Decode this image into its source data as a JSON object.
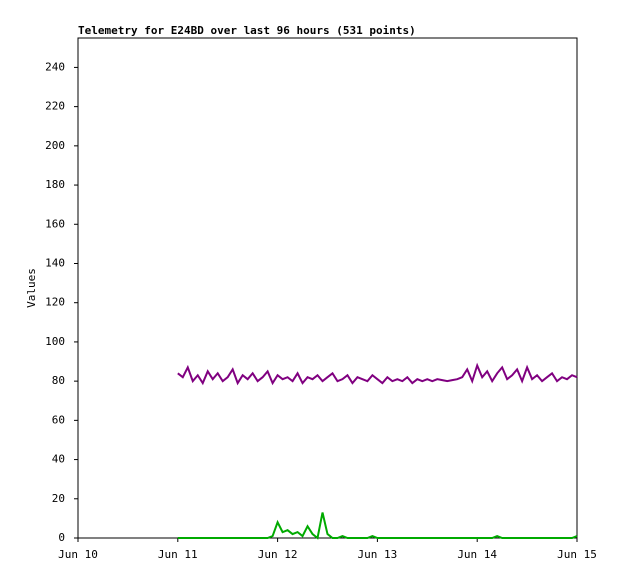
{
  "chart_data": {
    "type": "line",
    "title": "Telemetry for E24BD over last 96 hours (531 points)",
    "y_label": "Values",
    "xlim": [
      10,
      15
    ],
    "xticks": [
      {
        "value": 10,
        "label": "Jun 10"
      },
      {
        "value": 11,
        "label": "Jun 11"
      },
      {
        "value": 12,
        "label": "Jun 12"
      },
      {
        "value": 13,
        "label": "Jun 13"
      },
      {
        "value": 14,
        "label": "Jun 14"
      },
      {
        "value": 15,
        "label": "Jun 15"
      }
    ],
    "ylim": [
      0,
      255
    ],
    "yticks": [
      0,
      20,
      40,
      60,
      80,
      100,
      120,
      140,
      160,
      180,
      200,
      220,
      240
    ],
    "x": [
      11.0,
      11.05,
      11.1,
      11.15,
      11.2,
      11.25,
      11.3,
      11.35,
      11.4,
      11.45,
      11.5,
      11.55,
      11.6,
      11.65,
      11.7,
      11.75,
      11.8,
      11.85,
      11.9,
      11.95,
      12.0,
      12.05,
      12.1,
      12.15,
      12.2,
      12.25,
      12.3,
      12.35,
      12.4,
      12.45,
      12.5,
      12.55,
      12.6,
      12.65,
      12.7,
      12.75,
      12.8,
      12.85,
      12.9,
      12.95,
      13.0,
      13.05,
      13.1,
      13.15,
      13.2,
      13.25,
      13.3,
      13.35,
      13.4,
      13.45,
      13.5,
      13.55,
      13.6,
      13.65,
      13.7,
      13.75,
      13.8,
      13.85,
      13.9,
      13.95,
      14.0,
      14.05,
      14.1,
      14.15,
      14.2,
      14.25,
      14.3,
      14.35,
      14.4,
      14.45,
      14.5,
      14.55,
      14.6,
      14.65,
      14.7,
      14.75,
      14.8,
      14.85,
      14.9,
      14.95,
      15.0
    ],
    "series": [
      {
        "color": "#800080",
        "values": [
          84,
          82,
          87,
          80,
          83,
          79,
          85,
          81,
          84,
          80,
          82,
          86,
          79,
          83,
          81,
          84,
          80,
          82,
          85,
          79,
          83,
          81,
          82,
          80,
          84,
          79,
          82,
          81,
          83,
          80,
          82,
          84,
          80,
          81,
          83,
          79,
          82,
          81,
          80,
          83,
          81,
          79,
          82,
          80,
          81,
          80,
          82,
          79,
          81,
          80,
          81,
          80,
          81,
          80.5,
          80,
          80.5,
          81,
          82,
          86,
          80,
          88,
          82,
          85,
          80,
          84,
          87,
          81,
          83,
          86,
          80,
          87,
          81,
          83,
          80,
          82,
          84,
          80,
          82,
          81,
          83,
          82
        ]
      },
      {
        "color": "#00aa00",
        "values": [
          0,
          0,
          0,
          0,
          0,
          0,
          0,
          0,
          0,
          0,
          0,
          0,
          0,
          0,
          0,
          0,
          0,
          0,
          0,
          1,
          8,
          3,
          4,
          2,
          3,
          1,
          6,
          2,
          0,
          13,
          2,
          0,
          0,
          1,
          0,
          0,
          0,
          0,
          0,
          1,
          0,
          0,
          0,
          0,
          0,
          0,
          0,
          0,
          0,
          0,
          0,
          0,
          0,
          0,
          0,
          0,
          0,
          0,
          0,
          0,
          0,
          0,
          0,
          0,
          1,
          0,
          0,
          0,
          0,
          0,
          0,
          0,
          0,
          0,
          0,
          0,
          0,
          0,
          0,
          0,
          1
        ]
      }
    ]
  }
}
